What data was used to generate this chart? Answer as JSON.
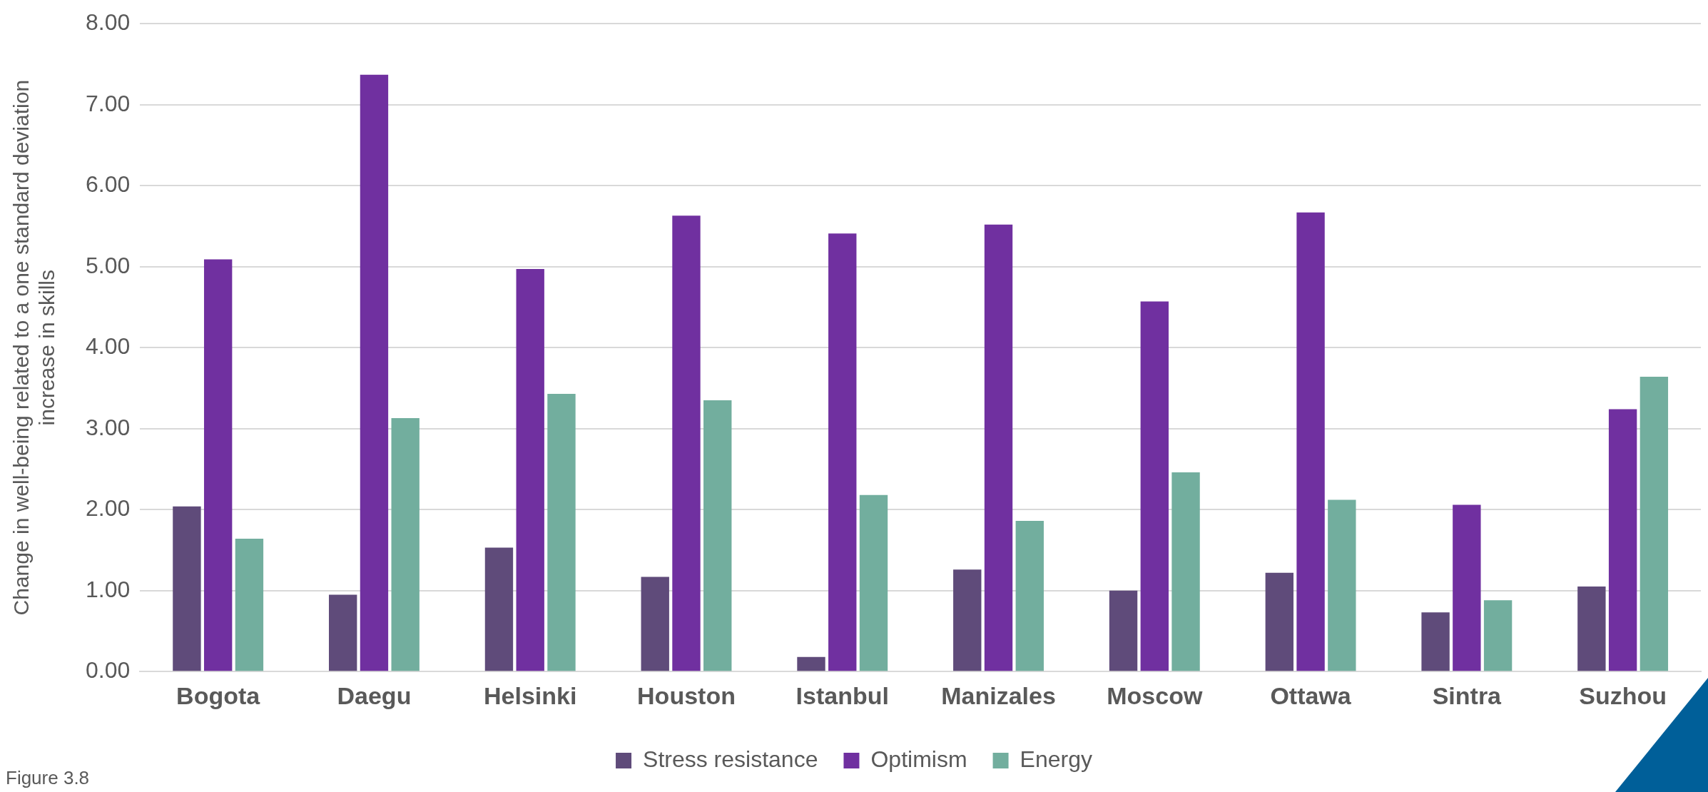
{
  "chart_data": {
    "type": "bar",
    "ylabel": "Change in well-being related to a one standard deviation increase in skills",
    "categories": [
      "Bogota",
      "Daegu",
      "Helsinki",
      "Houston",
      "Istanbul",
      "Manizales",
      "Moscow",
      "Ottawa",
      "Sintra",
      "Suzhou"
    ],
    "series": [
      {
        "name": "Stress resistance",
        "color": "#5f4b7a",
        "values": [
          2.04,
          0.95,
          1.53,
          1.17,
          0.18,
          1.26,
          1.0,
          1.22,
          0.73,
          1.05
        ]
      },
      {
        "name": "Optimism",
        "color": "#7030a0",
        "values": [
          5.09,
          7.37,
          4.97,
          5.63,
          5.41,
          5.52,
          4.57,
          5.67,
          2.06,
          3.24
        ]
      },
      {
        "name": "Energy",
        "color": "#72ae9e",
        "values": [
          1.64,
          3.13,
          3.43,
          3.35,
          2.18,
          1.86,
          2.46,
          2.12,
          0.88,
          3.64
        ]
      }
    ],
    "ylim": [
      0,
      8
    ],
    "yticks": [
      {
        "value": 0,
        "label": "0.00"
      },
      {
        "value": 1,
        "label": "1.00"
      },
      {
        "value": 2,
        "label": "2.00"
      },
      {
        "value": 3,
        "label": "3.00"
      },
      {
        "value": 4,
        "label": "4.00"
      },
      {
        "value": 5,
        "label": "5.00"
      },
      {
        "value": 6,
        "label": "6.00"
      },
      {
        "value": 7,
        "label": "7.00"
      },
      {
        "value": 8,
        "label": "8.00"
      }
    ],
    "grid": "y",
    "legend": "bottom",
    "annotations": [
      "Figure 3.8"
    ]
  }
}
